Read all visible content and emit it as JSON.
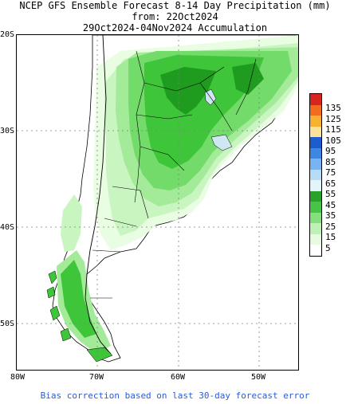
{
  "title": {
    "line1": "NCEP GFS Ensemble Forecast 8-14 Day Precipitation (mm)",
    "line2": "from: 22Oct2024",
    "line3": "29Oct2024-04Nov2024 Accumulation"
  },
  "map": {
    "lat_labels": [
      "20S",
      "30S",
      "40S",
      "50S"
    ],
    "lon_labels": [
      "80W",
      "70W",
      "60W",
      "50W"
    ],
    "colors": {
      "land_low": "#ffffff",
      "c5": "#e9fde3",
      "c15": "#c9f5c1",
      "c25": "#a4eb99",
      "c35": "#72db6a",
      "c45": "#3fc53a",
      "c55": "#1f9b1f",
      "water": "#ffffff",
      "lake": "#cfe6f3"
    }
  },
  "legend": {
    "items": [
      {
        "label": "135",
        "color": "#d7251f"
      },
      {
        "label": "125",
        "color": "#f26b1f"
      },
      {
        "label": "115",
        "color": "#f7b232"
      },
      {
        "label": "105",
        "color": "#fbe29a"
      },
      {
        "label": "95",
        "color": "#1d5ccf"
      },
      {
        "label": "85",
        "color": "#3d87e3"
      },
      {
        "label": "75",
        "color": "#79b3f2"
      },
      {
        "label": "65",
        "color": "#b6dcf7"
      },
      {
        "label": "55",
        "color": "#e3f5fb"
      },
      {
        "label": "45",
        "color": "#2aa12a"
      },
      {
        "label": "35",
        "color": "#47c447"
      },
      {
        "label": "25",
        "color": "#84df7c"
      },
      {
        "label": "15",
        "color": "#bff0b6"
      },
      {
        "label": "5",
        "color": "#e6fbe0"
      },
      {
        "label": "",
        "color": "#ffffff"
      }
    ]
  },
  "footer": "Bias correction based on last 30-day forecast error"
}
